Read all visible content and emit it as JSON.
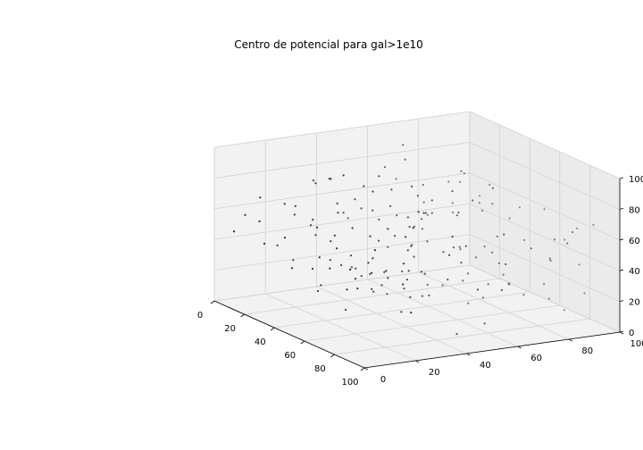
{
  "chart_data": {
    "type": "scatter",
    "title": "Centro de potencial para gal>1e10",
    "xlim": [
      0,
      100
    ],
    "ylim": [
      0,
      100
    ],
    "zlim": [
      0,
      100
    ],
    "x_ticks": [
      "0",
      "20",
      "40",
      "60",
      "80",
      "100"
    ],
    "y_ticks": [
      "0",
      "20",
      "40",
      "60",
      "80",
      "100"
    ],
    "z_ticks": [
      "0",
      "20",
      "40",
      "60",
      "80",
      "100"
    ],
    "grid": true,
    "marker_color": "#1f1f1f",
    "points": [
      [
        12,
        5,
        60
      ],
      [
        18,
        9,
        43
      ],
      [
        23,
        14,
        70
      ],
      [
        30,
        10,
        52
      ],
      [
        8,
        20,
        35
      ],
      [
        15,
        30,
        78
      ],
      [
        25,
        25,
        48
      ],
      [
        35,
        18,
        64
      ],
      [
        40,
        30,
        40
      ],
      [
        45,
        22,
        72
      ],
      [
        52,
        15,
        58
      ],
      [
        60,
        10,
        45
      ],
      [
        68,
        8,
        62
      ],
      [
        75,
        12,
        38
      ],
      [
        82,
        5,
        55
      ],
      [
        90,
        10,
        70
      ],
      [
        95,
        18,
        48
      ],
      [
        88,
        25,
        35
      ],
      [
        78,
        30,
        60
      ],
      [
        70,
        35,
        42
      ],
      [
        62,
        40,
        66
      ],
      [
        55,
        45,
        50
      ],
      [
        48,
        50,
        38
      ],
      [
        42,
        55,
        74
      ],
      [
        36,
        60,
        55
      ],
      [
        28,
        65,
        44
      ],
      [
        20,
        70,
        68
      ],
      [
        12,
        75,
        52
      ],
      [
        6,
        80,
        40
      ],
      [
        14,
        88,
        63
      ],
      [
        22,
        92,
        47
      ],
      [
        32,
        85,
        58
      ],
      [
        44,
        80,
        36
      ],
      [
        56,
        76,
        70
      ],
      [
        66,
        72,
        54
      ],
      [
        74,
        68,
        41
      ],
      [
        84,
        64,
        65
      ],
      [
        92,
        60,
        50
      ],
      [
        98,
        55,
        37
      ],
      [
        86,
        48,
        62
      ],
      [
        76,
        52,
        46
      ],
      [
        64,
        58,
        72
      ],
      [
        54,
        62,
        44
      ],
      [
        46,
        68,
        60
      ],
      [
        38,
        74,
        33
      ],
      [
        26,
        78,
        57
      ],
      [
        16,
        84,
        45
      ],
      [
        10,
        92,
        66
      ],
      [
        30,
        40,
        20
      ],
      [
        35,
        45,
        15
      ],
      [
        40,
        50,
        25
      ],
      [
        45,
        55,
        10
      ],
      [
        50,
        60,
        18
      ],
      [
        55,
        65,
        22
      ],
      [
        60,
        70,
        12
      ],
      [
        65,
        75,
        28
      ],
      [
        70,
        80,
        16
      ],
      [
        75,
        85,
        24
      ],
      [
        80,
        90,
        8
      ],
      [
        85,
        95,
        20
      ],
      [
        20,
        30,
        12
      ],
      [
        25,
        35,
        26
      ],
      [
        15,
        45,
        18
      ],
      [
        10,
        55,
        9
      ],
      [
        5,
        65,
        22
      ],
      [
        30,
        50,
        6
      ],
      [
        40,
        60,
        14
      ],
      [
        50,
        70,
        4
      ],
      [
        60,
        80,
        19
      ],
      [
        70,
        90,
        11
      ],
      [
        35,
        20,
        17
      ],
      [
        45,
        25,
        8
      ],
      [
        55,
        30,
        23
      ],
      [
        65,
        35,
        13
      ],
      [
        75,
        40,
        27
      ],
      [
        85,
        45,
        5
      ],
      [
        95,
        50,
        15
      ],
      [
        50,
        40,
        85
      ],
      [
        55,
        45,
        88
      ],
      [
        60,
        50,
        80
      ],
      [
        45,
        38,
        92
      ],
      [
        40,
        35,
        84
      ],
      [
        65,
        55,
        87
      ],
      [
        70,
        60,
        82
      ],
      [
        35,
        30,
        90
      ],
      [
        30,
        28,
        86
      ],
      [
        75,
        65,
        91
      ],
      [
        20,
        55,
        83
      ],
      [
        25,
        60,
        89
      ],
      [
        80,
        35,
        84
      ],
      [
        85,
        30,
        88
      ],
      [
        15,
        65,
        93
      ],
      [
        90,
        25,
        81
      ],
      [
        42,
        72,
        86
      ],
      [
        58,
        28,
        90
      ],
      [
        22,
        18,
        32
      ],
      [
        28,
        22,
        28
      ],
      [
        33,
        26,
        35
      ],
      [
        38,
        33,
        30
      ],
      [
        52,
        36,
        33
      ],
      [
        57,
        42,
        29
      ],
      [
        62,
        46,
        34
      ],
      [
        67,
        52,
        31
      ],
      [
        72,
        57,
        36
      ],
      [
        77,
        62,
        30
      ],
      [
        48,
        12,
        66
      ],
      [
        53,
        16,
        62
      ],
      [
        58,
        20,
        68
      ],
      [
        63,
        24,
        64
      ],
      [
        68,
        28,
        70
      ],
      [
        73,
        32,
        66
      ],
      [
        18,
        40,
        56
      ],
      [
        23,
        44,
        60
      ],
      [
        28,
        48,
        54
      ],
      [
        33,
        52,
        58
      ],
      [
        38,
        56,
        52
      ],
      [
        43,
        60,
        62
      ],
      [
        8,
        35,
        72
      ],
      [
        12,
        38,
        76
      ],
      [
        92,
        70,
        58
      ],
      [
        96,
        75,
        52
      ],
      [
        88,
        80,
        46
      ],
      [
        82,
        85,
        56
      ],
      [
        94,
        85,
        66
      ],
      [
        90,
        90,
        42
      ],
      [
        80,
        95,
        60
      ],
      [
        70,
        96,
        48
      ],
      [
        60,
        94,
        64
      ],
      [
        50,
        92,
        40
      ],
      [
        40,
        96,
        56
      ],
      [
        30,
        98,
        44
      ],
      [
        20,
        96,
        62
      ],
      [
        10,
        98,
        50
      ],
      [
        3,
        90,
        58
      ],
      [
        2,
        70,
        64
      ],
      [
        4,
        50,
        44
      ],
      [
        3,
        30,
        56
      ],
      [
        5,
        15,
        66
      ],
      [
        8,
        3,
        48
      ],
      [
        25,
        3,
        62
      ],
      [
        45,
        4,
        40
      ],
      [
        65,
        3,
        56
      ],
      [
        85,
        2,
        44
      ],
      [
        98,
        4,
        60
      ],
      [
        97,
        35,
        64
      ],
      [
        99,
        45,
        40
      ],
      [
        94,
        38,
        74
      ],
      [
        91,
        62,
        36
      ],
      [
        96,
        92,
        70
      ],
      [
        99,
        80,
        62
      ],
      [
        97,
        20,
        30
      ],
      [
        92,
        8,
        66
      ],
      [
        38,
        42,
        46
      ],
      [
        42,
        46,
        50
      ],
      [
        46,
        50,
        44
      ],
      [
        50,
        54,
        48
      ],
      [
        54,
        58,
        42
      ],
      [
        58,
        62,
        46
      ],
      [
        62,
        66,
        40
      ],
      [
        66,
        70,
        44
      ],
      [
        24,
        34,
        66
      ],
      [
        29,
        38,
        70
      ],
      [
        34,
        42,
        64
      ],
      [
        39,
        46,
        68
      ],
      [
        44,
        50,
        62
      ],
      [
        49,
        54,
        66
      ],
      [
        16,
        22,
        58
      ],
      [
        20,
        26,
        52
      ],
      [
        72,
        18,
        52
      ],
      [
        77,
        22,
        48
      ],
      [
        82,
        26,
        54
      ],
      [
        87,
        30,
        50
      ],
      [
        60,
        20,
        36
      ],
      [
        64,
        24,
        30
      ],
      [
        68,
        28,
        38
      ],
      [
        72,
        32,
        32
      ]
    ]
  }
}
